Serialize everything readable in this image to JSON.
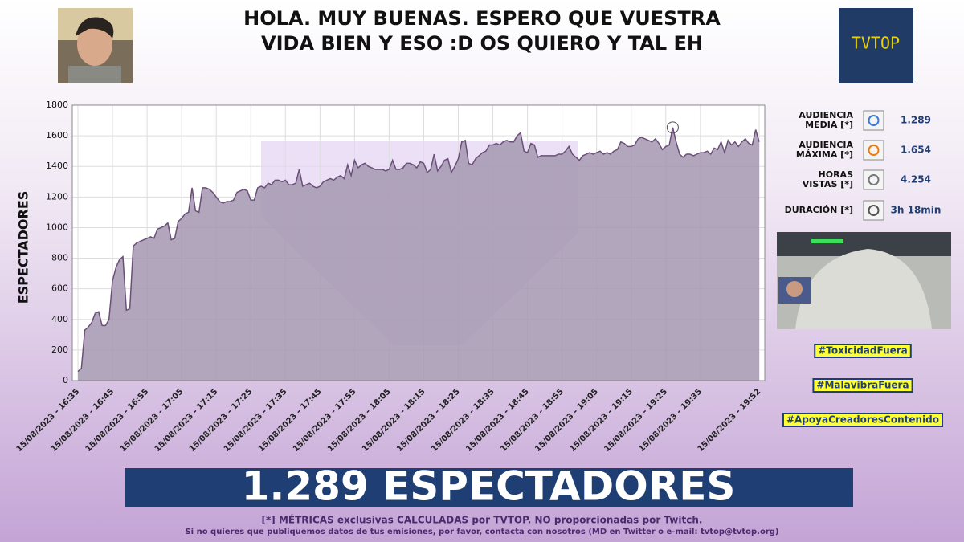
{
  "header": {
    "title_lines": [
      "HOLA. MUY BUENAS. ESPERO QUE VUESTRA",
      "VIDA BIEN Y ESO :D OS QUIERO Y TAL EH"
    ],
    "logo": "TVTOP"
  },
  "chart_data": {
    "type": "area",
    "y_label": "ESPECTADORES",
    "color": "#a596b0",
    "line_color": "#6b4f7a",
    "ylim": [
      0,
      1800
    ],
    "yticks": [
      0,
      200,
      400,
      600,
      800,
      1000,
      1200,
      1400,
      1600,
      1800
    ],
    "grid": true,
    "categories": [
      "15/08/2023 - 16:35",
      null,
      null,
      null,
      null,
      null,
      null,
      null,
      null,
      null,
      "15/08/2023 - 16:45",
      null,
      null,
      null,
      null,
      null,
      null,
      null,
      null,
      null,
      "15/08/2023 - 16:55",
      null,
      null,
      null,
      null,
      null,
      null,
      null,
      null,
      null,
      "15/08/2023 - 17:05",
      null,
      null,
      null,
      null,
      null,
      null,
      null,
      null,
      null,
      "15/08/2023 - 17:15",
      null,
      null,
      null,
      null,
      null,
      null,
      null,
      null,
      null,
      "15/08/2023 - 17:25",
      null,
      null,
      null,
      null,
      null,
      null,
      null,
      null,
      null,
      "15/08/2023 - 17:35",
      null,
      null,
      null,
      null,
      null,
      null,
      null,
      null,
      null,
      "15/08/2023 - 17:45",
      null,
      null,
      null,
      null,
      null,
      null,
      null,
      null,
      null,
      "15/08/2023 - 17:55",
      null,
      null,
      null,
      null,
      null,
      null,
      null,
      null,
      null,
      "15/08/2023 - 18:05",
      null,
      null,
      null,
      null,
      null,
      null,
      null,
      null,
      null,
      "15/08/2023 - 18:15",
      null,
      null,
      null,
      null,
      null,
      null,
      null,
      null,
      null,
      "15/08/2023 - 18:25",
      null,
      null,
      null,
      null,
      null,
      null,
      null,
      null,
      null,
      "15/08/2023 - 18:35",
      null,
      null,
      null,
      null,
      null,
      null,
      null,
      null,
      null,
      "15/08/2023 - 18:45",
      null,
      null,
      null,
      null,
      null,
      null,
      null,
      null,
      null,
      "15/08/2023 - 18:55",
      null,
      null,
      null,
      null,
      null,
      null,
      null,
      null,
      null,
      "15/08/2023 - 19:05",
      null,
      null,
      null,
      null,
      null,
      null,
      null,
      null,
      null,
      "15/08/2023 - 19:15",
      null,
      null,
      null,
      null,
      null,
      null,
      null,
      null,
      null,
      "15/08/2023 - 19:25",
      null,
      null,
      null,
      null,
      null,
      null,
      null,
      null,
      null,
      "15/08/2023 - 19:35",
      null,
      null,
      null,
      null,
      null,
      null,
      null,
      null,
      null,
      null,
      null,
      null,
      null,
      null,
      null,
      null,
      "15/08/2023 - 19:52"
    ],
    "values": [
      60,
      80,
      330,
      350,
      380,
      440,
      450,
      360,
      360,
      400,
      650,
      740,
      790,
      810,
      460,
      470,
      880,
      900,
      910,
      920,
      930,
      940,
      930,
      990,
      1000,
      1010,
      1030,
      920,
      930,
      1040,
      1060,
      1090,
      1100,
      1260,
      1110,
      1100,
      1260,
      1260,
      1250,
      1230,
      1200,
      1170,
      1160,
      1170,
      1170,
      1180,
      1230,
      1240,
      1250,
      1240,
      1180,
      1180,
      1260,
      1270,
      1260,
      1290,
      1280,
      1310,
      1310,
      1300,
      1310,
      1280,
      1280,
      1290,
      1380,
      1270,
      1280,
      1290,
      1270,
      1260,
      1270,
      1300,
      1310,
      1320,
      1310,
      1330,
      1340,
      1320,
      1410,
      1340,
      1440,
      1390,
      1410,
      1420,
      1400,
      1390,
      1380,
      1380,
      1380,
      1370,
      1380,
      1440,
      1380,
      1380,
      1390,
      1420,
      1420,
      1410,
      1390,
      1430,
      1420,
      1360,
      1380,
      1480,
      1370,
      1400,
      1440,
      1450,
      1360,
      1400,
      1450,
      1560,
      1570,
      1420,
      1410,
      1450,
      1470,
      1490,
      1500,
      1540,
      1540,
      1550,
      1540,
      1560,
      1570,
      1560,
      1560,
      1600,
      1620,
      1500,
      1490,
      1550,
      1540,
      1460,
      1470,
      1470,
      1470,
      1470,
      1470,
      1480,
      1480,
      1500,
      1530,
      1480,
      1460,
      1440,
      1470,
      1480,
      1490,
      1480,
      1490,
      1500,
      1480,
      1490,
      1480,
      1500,
      1510,
      1560,
      1550,
      1530,
      1530,
      1540,
      1580,
      1590,
      1580,
      1570,
      1560,
      1580,
      1550,
      1510,
      1530,
      1540,
      1654,
      1560,
      1480,
      1460,
      1480,
      1480,
      1470,
      1480,
      1490,
      1490,
      1500,
      1480,
      1520,
      1510,
      1560,
      1490,
      1570,
      1540,
      1560,
      1530,
      1560,
      1580,
      1550,
      1540,
      1640,
      1560
    ]
  },
  "stats": [
    {
      "label": [
        "AUDIENCIA",
        "MEDIA [*]"
      ],
      "value": "1.289"
    },
    {
      "label": [
        "AUDIENCIA",
        "MÁXIMA [*]"
      ],
      "value": "1.654"
    },
    {
      "label": [
        "HORAS",
        "VISTAS [*]"
      ],
      "value": "4.254"
    },
    {
      "label": [
        "DURACIÓN [*]"
      ],
      "value": "3h 18min"
    }
  ],
  "hashtags": [
    "#ToxicidadFuera",
    "#MalavibraFuera",
    "#ApoyaCreadoresContenido"
  ],
  "banner": "1.289 ESPECTADORES",
  "footnotes": [
    "[*] MÉTRICAS exclusivas CALCULADAS por TVTOP. NO proporcionadas por Twitch.",
    "Si no quieres que publiquemos datos de tus emisiones, por favor, contacta con nosotros (MD en Twitter o e-mail: tvtop@tvtop.org)"
  ]
}
